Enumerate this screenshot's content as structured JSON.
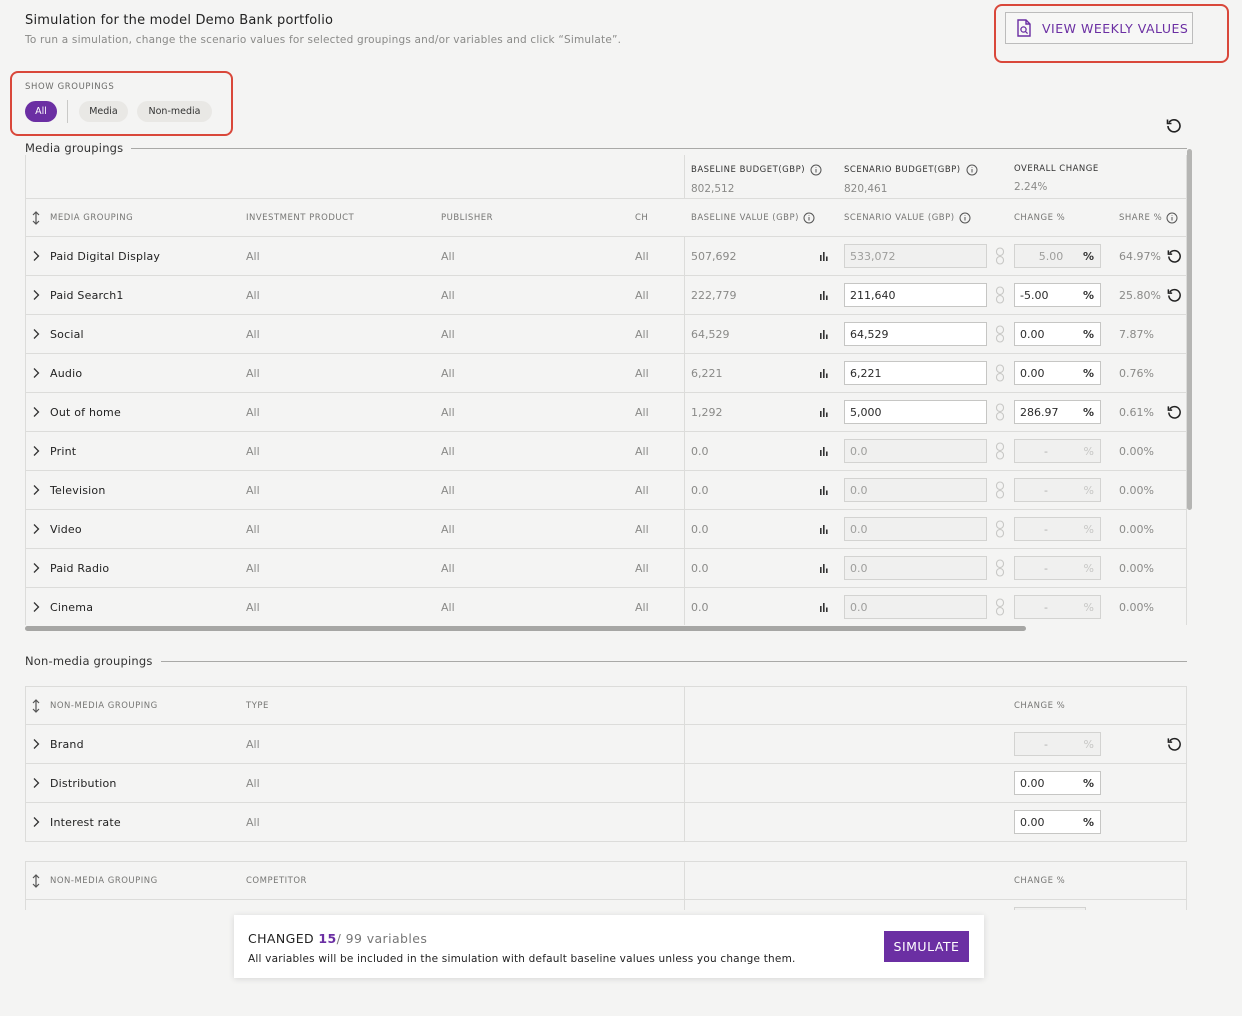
{
  "header": {
    "title": "Simulation for the model Demo Bank portfolio",
    "subtitle": "To run a simulation, change the scenario values for selected groupings and/or variables and click “Simulate”.",
    "weekly_button": "VIEW WEEKLY VALUES"
  },
  "groupings_filter": {
    "label": "SHOW GROUPINGS",
    "options": [
      "All",
      "Media",
      "Non-media"
    ],
    "selected": "All"
  },
  "media": {
    "section_title": "Media groupings",
    "summary": {
      "baseline_label": "BASELINE BUDGET(GBP)",
      "baseline_value": "802,512",
      "scenario_label": "SCENARIO BUDGET(GBP)",
      "scenario_value": "820,461",
      "overall_label": "OVERALL CHANGE",
      "overall_value": "2.24%"
    },
    "columns": {
      "grouping": "MEDIA GROUPING",
      "product": "INVESTMENT PRODUCT",
      "publisher": "PUBLISHER",
      "ch": "CH",
      "baseline": "BASELINE VALUE (GBP)",
      "scenario": "SCENARIO VALUE (GBP)",
      "change": "CHANGE %",
      "share": "SHARE %"
    },
    "rows": [
      {
        "name": "Paid Digital Display",
        "product": "All",
        "publisher": "All",
        "ch": "All",
        "baseline": "507,692",
        "scenario": "533,072",
        "change": "5.00",
        "share": "64.97%"
      },
      {
        "name": "Paid Search1",
        "product": "All",
        "publisher": "All",
        "ch": "All",
        "baseline": "222,779",
        "scenario": "211,640",
        "change": "-5.00",
        "share": "25.80%"
      },
      {
        "name": "Social",
        "product": "All",
        "publisher": "All",
        "ch": "All",
        "baseline": "64,529",
        "scenario": "64,529",
        "change": "0.00",
        "share": "7.87%"
      },
      {
        "name": "Audio",
        "product": "All",
        "publisher": "All",
        "ch": "All",
        "baseline": "6,221",
        "scenario": "6,221",
        "change": "0.00",
        "share": "0.76%"
      },
      {
        "name": "Out of home",
        "product": "All",
        "publisher": "All",
        "ch": "All",
        "baseline": "1,292",
        "scenario": "5,000",
        "change": "286.97",
        "share": "0.61%"
      },
      {
        "name": "Print",
        "product": "All",
        "publisher": "All",
        "ch": "All",
        "baseline": "0.0",
        "scenario": "0.0",
        "change": "-",
        "share": "0.00%"
      },
      {
        "name": "Television",
        "product": "All",
        "publisher": "All",
        "ch": "All",
        "baseline": "0.0",
        "scenario": "0.0",
        "change": "-",
        "share": "0.00%"
      },
      {
        "name": "Video",
        "product": "All",
        "publisher": "All",
        "ch": "All",
        "baseline": "0.0",
        "scenario": "0.0",
        "change": "-",
        "share": "0.00%"
      },
      {
        "name": "Paid Radio",
        "product": "All",
        "publisher": "All",
        "ch": "All",
        "baseline": "0.0",
        "scenario": "0.0",
        "change": "-",
        "share": "0.00%"
      },
      {
        "name": "Cinema",
        "product": "All",
        "publisher": "All",
        "ch": "All",
        "baseline": "0.0",
        "scenario": "0.0",
        "change": "-",
        "share": "0.00%"
      }
    ]
  },
  "non_media": {
    "section_title": "Non-media groupings",
    "table1": {
      "col_grouping": "NON-MEDIA GROUPING",
      "col_type": "TYPE",
      "col_change": "CHANGE %",
      "rows": [
        {
          "name": "Brand",
          "type": "All",
          "change": "-"
        },
        {
          "name": "Distribution",
          "type": "All",
          "change": "0.00"
        },
        {
          "name": "Interest rate",
          "type": "All",
          "change": "0.00"
        }
      ]
    },
    "table2": {
      "col_grouping": "NON-MEDIA GROUPING",
      "col_competitor": "COMPETITOR",
      "col_change": "CHANGE %"
    }
  },
  "footer": {
    "changed_label": "CHANGED",
    "changed_count": "15",
    "total": "/ 99 variables",
    "note": "All variables will be included in the simulation with default baseline values unless you change them.",
    "simulate_button": "SIMULATE"
  },
  "icons": {
    "weekly": "document-search-icon",
    "reset": "reset-icon",
    "info": "info-icon",
    "sort": "sort-icon",
    "chevron": "chevron-right-icon",
    "chart": "bar-chart-icon",
    "link": "link-icon"
  },
  "colors": {
    "accent": "#6b2fa3",
    "highlight": "#d9473a",
    "background": "#f4f4f3"
  }
}
